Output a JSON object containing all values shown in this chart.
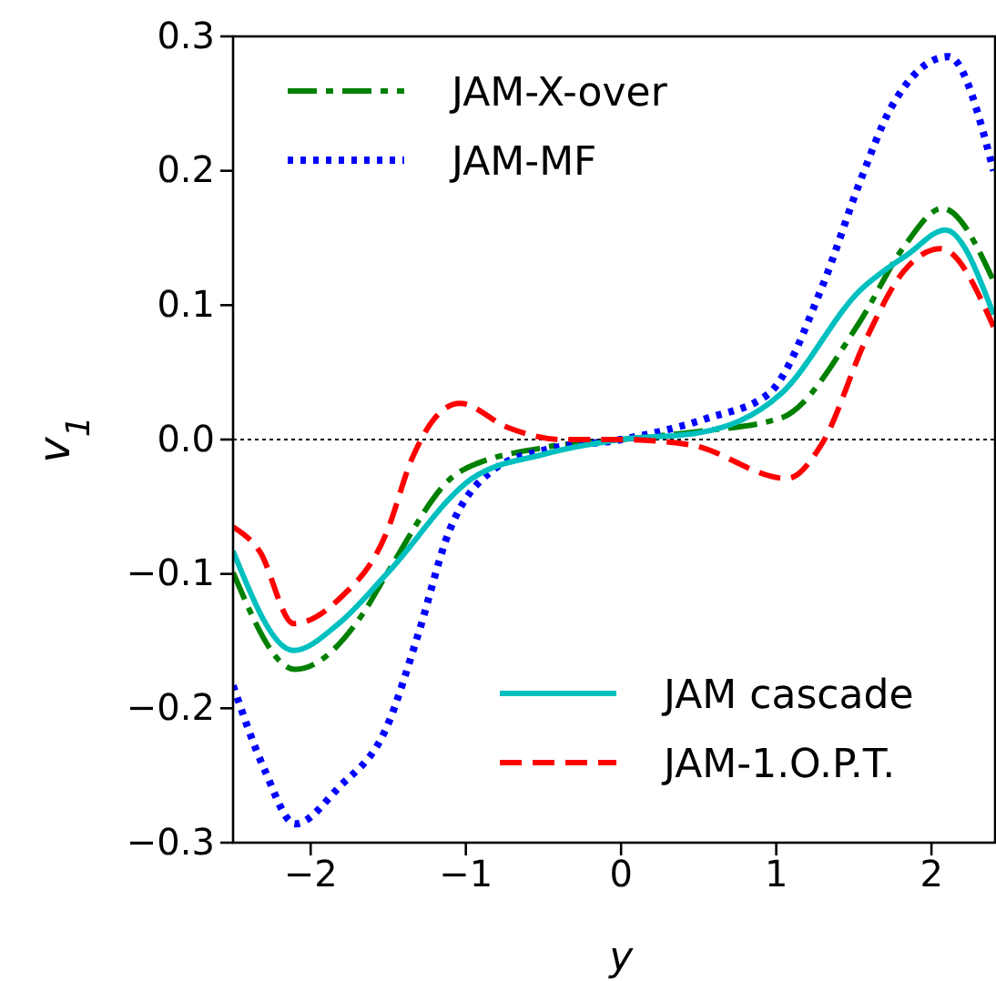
{
  "chart_data": {
    "type": "line",
    "xlabel": "y",
    "ylabel": "v$_{1}$",
    "xlim": [
      -2.5,
      2.41
    ],
    "ylim": [
      -0.3,
      0.3
    ],
    "xticks": [
      {
        "value": -2,
        "label": "−2"
      },
      {
        "value": -1,
        "label": "−1"
      },
      0,
      1,
      2
    ],
    "yticks": [
      {
        "value": -0.3,
        "label": "−0.3"
      },
      {
        "value": -0.2,
        "label": "−0.2"
      },
      {
        "value": -0.1,
        "label": "−0.1"
      },
      {
        "value": 0,
        "label": "0.0"
      },
      0.1,
      0.2,
      0.3
    ],
    "legend": "top left",
    "ref_lines": [
      {
        "axis": "y",
        "value": 0,
        "color": "#000000",
        "line_style": "dotted"
      }
    ],
    "series": [
      {
        "name": "JAM-X-over",
        "color": "#008000",
        "line_style": "dashdot",
        "x": [
          -2.5,
          -2.1,
          -1.66,
          -1.51,
          -1.04,
          -0.5,
          0,
          0.5,
          1.03,
          1.54,
          1.82,
          2.07,
          2.4
        ],
        "values": [
          -0.099,
          -0.171,
          -0.129,
          -0.1,
          -0.024,
          -0.006,
          0,
          0.006,
          0.016,
          0.088,
          0.143,
          0.172,
          0.118
        ]
      },
      {
        "name": "JAM-MF",
        "color": "#0000ff",
        "line_style": "dotted",
        "x": [
          -2.5,
          -2.3,
          -2.1,
          -1.82,
          -1.51,
          -1.31,
          -1.11,
          -0.84,
          -0.5,
          0,
          0.56,
          0.95,
          1.3,
          1.54,
          1.74,
          2.11,
          2.4
        ],
        "values": [
          -0.183,
          -0.245,
          -0.286,
          -0.259,
          -0.214,
          -0.146,
          -0.069,
          -0.024,
          -0.008,
          0,
          0.016,
          0.034,
          0.115,
          0.192,
          0.247,
          0.285,
          0.2
        ]
      },
      {
        "name": "JAM cascade",
        "color": "#00bfbf",
        "line_style": "solid",
        "x": [
          -2.5,
          -2.11,
          -1.82,
          -1.51,
          -0.96,
          -0.5,
          0,
          0.5,
          1.03,
          1.54,
          1.85,
          2.09,
          2.4
        ],
        "values": [
          -0.083,
          -0.157,
          -0.137,
          -0.1,
          -0.029,
          -0.011,
          0,
          0.005,
          0.034,
          0.111,
          0.138,
          0.156,
          0.093
        ]
      },
      {
        "name": "JAM-1.O.P.T.",
        "color": "#ff0000",
        "line_style": "dashed",
        "x": [
          -2.5,
          -2.33,
          -2.11,
          -1.82,
          -1.51,
          -1.35,
          -1.2,
          -1.04,
          -0.73,
          -0.38,
          0,
          0.45,
          1.07,
          1.3,
          1.58,
          1.82,
          2.06,
          2.4
        ],
        "values": [
          -0.065,
          -0.083,
          -0.137,
          -0.119,
          -0.069,
          -0.015,
          0.016,
          0.027,
          0.009,
          0,
          0,
          -0.004,
          -0.029,
          -0.002,
          0.075,
          0.125,
          0.142,
          0.084
        ]
      }
    ]
  }
}
